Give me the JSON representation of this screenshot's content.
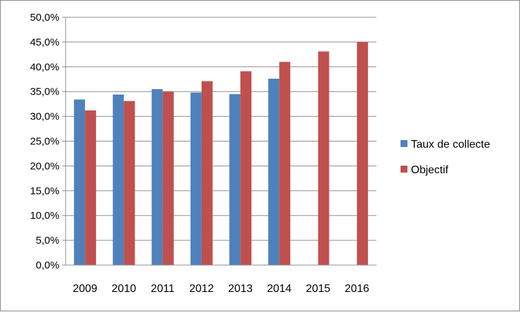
{
  "chart_data": {
    "type": "bar",
    "categories": [
      "2009",
      "2010",
      "2011",
      "2012",
      "2013",
      "2014",
      "2015",
      "2016"
    ],
    "series": [
      {
        "name": "Taux de collecte",
        "color": "#4f81bd",
        "values": [
          33.4,
          34.4,
          35.5,
          34.8,
          34.5,
          37.6,
          null,
          null
        ]
      },
      {
        "name": "Objectif",
        "color": "#c0504d",
        "values": [
          31.2,
          33.1,
          35.0,
          37.1,
          39.1,
          41.0,
          43.1,
          45.0
        ]
      }
    ],
    "ylim": [
      0,
      50
    ],
    "y_ticks": [
      "0,0%",
      "5,0%",
      "10,0%",
      "15,0%",
      "20,0%",
      "25,0%",
      "30,0%",
      "35,0%",
      "40,0%",
      "45,0%",
      "50,0%"
    ],
    "title": "",
    "xlabel": "",
    "ylabel": "",
    "grid": true,
    "legend_position": "right"
  }
}
